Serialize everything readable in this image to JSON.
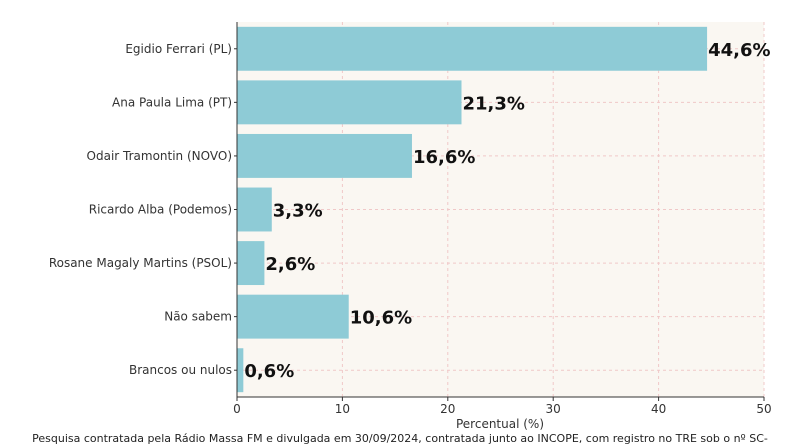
{
  "chart_data": {
    "type": "bar",
    "orientation": "horizontal",
    "categories": [
      "Egidio Ferrari (PL)",
      "Ana Paula Lima (PT)",
      "Odair Tramontin (NOVO)",
      "Ricardo Alba (Podemos)",
      "Rosane Magaly Martins (PSOL)",
      "Não sabem",
      "Brancos ou nulos"
    ],
    "values": [
      44.6,
      21.3,
      16.6,
      3.3,
      2.6,
      10.6,
      0.6
    ],
    "data_labels": [
      "44,6%",
      "21,3%",
      "16,6%",
      "3,3%",
      "2,6%",
      "10,6%",
      "0,6%"
    ],
    "xlabel": "Percentual (%)",
    "xlim": [
      0,
      50
    ],
    "xticks": [
      0,
      10,
      20,
      30,
      40,
      50
    ],
    "grid": true,
    "bar_color": "#8ecbd6",
    "grid_color": "#f0c8c8",
    "plot_bg": "#faf7f2"
  },
  "footnote": "Pesquisa contratada pela Rádio Massa FM e divulgada em 30/09/2024, contratada junto ao INCOPE, com registro no TRE sob o nº SC-"
}
